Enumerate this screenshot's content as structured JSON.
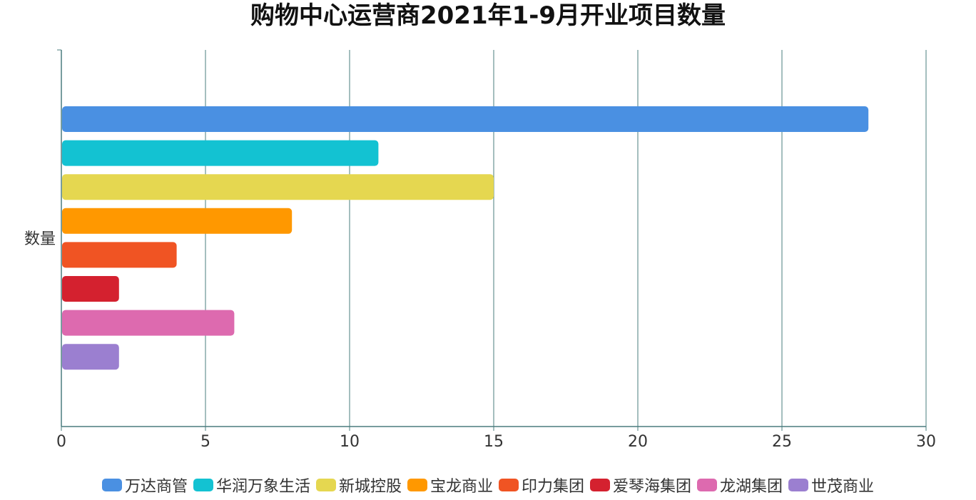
{
  "chart_data": {
    "type": "bar",
    "orientation": "horizontal",
    "title": "购物中心运营商2021年1-9月开业项目数量",
    "categories": [
      "数量"
    ],
    "series": [
      {
        "name": "万达商管",
        "values": [
          28
        ],
        "color": "#4A90E2"
      },
      {
        "name": "华润万象生活",
        "values": [
          11
        ],
        "color": "#13C2D2"
      },
      {
        "name": "新城控股",
        "values": [
          15
        ],
        "color": "#E5D750"
      },
      {
        "name": "宝龙商业",
        "values": [
          8
        ],
        "color": "#FF9800"
      },
      {
        "name": "印力集团",
        "values": [
          4
        ],
        "color": "#F05423"
      },
      {
        "name": "爱琴海集团",
        "values": [
          2
        ],
        "color": "#D4212F"
      },
      {
        "name": "龙湖集团",
        "values": [
          6
        ],
        "color": "#DD6AAF"
      },
      {
        "name": "世茂商业",
        "values": [
          2
        ],
        "color": "#9B7FD0"
      }
    ],
    "xlim": [
      0,
      30
    ],
    "xticks": [
      "0",
      "5",
      "10",
      "15",
      "20",
      "25",
      "30"
    ],
    "grid": true,
    "legend_position": "bottom"
  },
  "colors": {
    "axis": "#4A7C7E",
    "grid": "#4A7C7E"
  }
}
